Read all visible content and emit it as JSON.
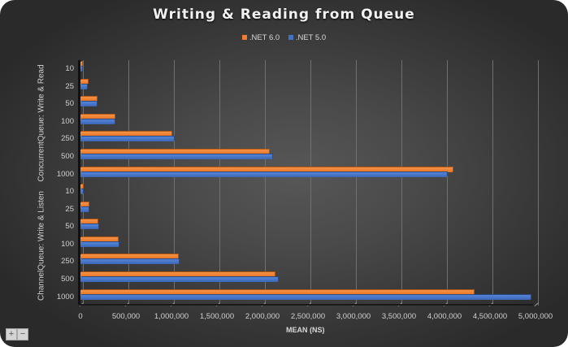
{
  "chart_data": {
    "type": "bar",
    "orientation": "horizontal",
    "title": "Writing & Reading from Queue",
    "xlabel": "MEAN (NS)",
    "ylabel": "",
    "xlim": [
      0,
      5000000
    ],
    "xticks": [
      "0",
      "500,000",
      "1,000,000",
      "1,500,000",
      "2,000,000",
      "2,500,000",
      "3,000,000",
      "3,500,000",
      "4,000,000",
      "4,500,000",
      "5,000,000"
    ],
    "grid": true,
    "legend_position": "top",
    "groups": [
      {
        "name": "ConcurrentQueue: Write & Read",
        "categories": [
          "10",
          "25",
          "50",
          "100",
          "250",
          "500",
          "1000"
        ],
        "series": [
          {
            "name": ".NET 6.0",
            "color": "#ed7d31",
            "values": [
              20000,
              80000,
              180000,
              375000,
              1000000,
              2070000,
              4090000
            ]
          },
          {
            "name": ".NET 5.0",
            "color": "#4472c4",
            "values": [
              15000,
              75000,
              180000,
              375000,
              1030000,
              2110000,
              4030000
            ]
          }
        ]
      },
      {
        "name": "ChannelQueue: Write & Listen",
        "categories": [
          "10",
          "25",
          "50",
          "100",
          "250",
          "500",
          "1000"
        ],
        "series": [
          {
            "name": ".NET 6.0",
            "color": "#ed7d31",
            "values": [
              30000,
              85000,
              190000,
              410000,
              1070000,
              2130000,
              4320000
            ]
          },
          {
            "name": ".NET 5.0",
            "color": "#4472c4",
            "values": [
              25000,
              85000,
              200000,
              420000,
              1080000,
              2170000,
              4950000
            ]
          }
        ]
      }
    ]
  },
  "legend": [
    {
      "label": ".NET 6.0",
      "color": "#ed7d31"
    },
    {
      "label": ".NET 5.0",
      "color": "#4472c4"
    }
  ],
  "controls": {
    "zoom_in": "+",
    "zoom_out": "−"
  }
}
